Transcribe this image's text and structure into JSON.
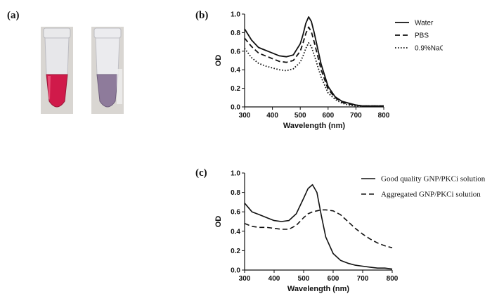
{
  "panels": {
    "a": {
      "label": "(a)"
    },
    "b": {
      "label": "(b)"
    },
    "c": {
      "label": "(c)"
    }
  },
  "colors": {
    "tube1_liquid": "#d01a4a",
    "tube2_liquid": "#8e7b9b",
    "line": "#111111"
  },
  "chart_data": [
    {
      "panel": "b",
      "type": "line",
      "xlabel": "Wavelength (nm)",
      "ylabel": "OD",
      "xlim": [
        300,
        800
      ],
      "ylim": [
        0,
        1.0
      ],
      "xticks": [
        300,
        400,
        500,
        600,
        700,
        800
      ],
      "yticks": [
        0.0,
        0.2,
        0.4,
        0.6,
        0.8,
        1.0
      ],
      "legend_position": "top-right",
      "grid": false,
      "x": [
        300,
        325,
        350,
        375,
        400,
        425,
        450,
        475,
        500,
        510,
        520,
        530,
        540,
        550,
        575,
        600,
        625,
        650,
        675,
        700,
        725,
        750,
        775,
        800
      ],
      "series": [
        {
          "name": "Water",
          "style": "solid",
          "values": [
            0.84,
            0.72,
            0.64,
            0.61,
            0.58,
            0.55,
            0.54,
            0.56,
            0.68,
            0.78,
            0.9,
            0.97,
            0.92,
            0.8,
            0.46,
            0.22,
            0.11,
            0.06,
            0.04,
            0.02,
            0.01,
            0.01,
            0.01,
            0.01
          ]
        },
        {
          "name": "PBS",
          "style": "dashed",
          "values": [
            0.74,
            0.65,
            0.58,
            0.55,
            0.52,
            0.49,
            0.48,
            0.5,
            0.6,
            0.69,
            0.79,
            0.86,
            0.81,
            0.7,
            0.4,
            0.19,
            0.1,
            0.05,
            0.03,
            0.02,
            0.01,
            0.01,
            0.01,
            0.01
          ]
        },
        {
          "name": "0.9%NaCl",
          "style": "dotted",
          "values": [
            0.63,
            0.53,
            0.47,
            0.44,
            0.42,
            0.4,
            0.39,
            0.41,
            0.48,
            0.55,
            0.63,
            0.69,
            0.65,
            0.56,
            0.32,
            0.15,
            0.08,
            0.04,
            0.02,
            0.01,
            0.01,
            0.01,
            0.01,
            0.01
          ]
        }
      ]
    },
    {
      "panel": "c",
      "type": "line",
      "xlabel": "Wavelength (nm)",
      "ylabel": "OD",
      "xlim": [
        300,
        800
      ],
      "ylim": [
        0,
        1.0
      ],
      "xticks": [
        300,
        400,
        500,
        600,
        700,
        800
      ],
      "yticks": [
        0.0,
        0.2,
        0.4,
        0.6,
        0.8,
        1.0
      ],
      "legend_position": "top-right",
      "grid": false,
      "x": [
        300,
        325,
        350,
        375,
        400,
        425,
        450,
        475,
        500,
        515,
        530,
        545,
        560,
        575,
        600,
        625,
        650,
        675,
        700,
        725,
        750,
        775,
        800
      ],
      "series": [
        {
          "name": "Good quality GNP/PKCi solution",
          "style": "solid",
          "values": [
            0.69,
            0.6,
            0.57,
            0.54,
            0.51,
            0.5,
            0.51,
            0.58,
            0.74,
            0.84,
            0.88,
            0.8,
            0.56,
            0.34,
            0.17,
            0.1,
            0.07,
            0.05,
            0.04,
            0.03,
            0.02,
            0.02,
            0.01
          ]
        },
        {
          "name": "Aggregated  GNP/PKCi solution",
          "style": "dashed",
          "values": [
            0.48,
            0.45,
            0.44,
            0.44,
            0.43,
            0.42,
            0.42,
            0.46,
            0.54,
            0.58,
            0.6,
            0.61,
            0.62,
            0.62,
            0.61,
            0.57,
            0.5,
            0.43,
            0.37,
            0.32,
            0.28,
            0.25,
            0.23
          ]
        }
      ]
    }
  ]
}
